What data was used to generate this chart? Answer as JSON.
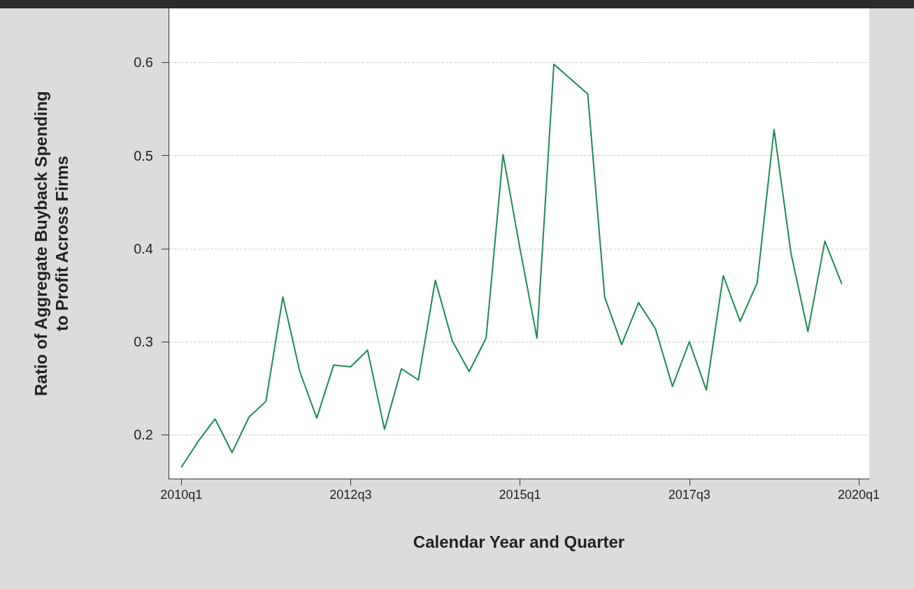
{
  "chart_data": {
    "type": "line",
    "xlabel": "Calendar Year and Quarter",
    "ylabel": "Ratio of Aggregate Buyback Spending\nto Profit Across Firms",
    "categories": [
      "2010q1",
      null,
      null,
      null,
      null,
      null,
      null,
      null,
      null,
      null,
      "2012q3",
      null,
      null,
      null,
      null,
      null,
      null,
      null,
      null,
      null,
      "2015q1",
      null,
      null,
      null,
      null,
      null,
      null,
      null,
      null,
      null,
      "2017q3",
      null,
      null,
      null,
      null,
      null,
      null,
      null,
      null,
      null,
      "2020q1"
    ],
    "series": [
      {
        "color": "#1e8a52",
        "values": [
          0.165,
          0.193,
          0.217,
          0.181,
          0.219,
          0.236,
          0.348,
          0.268,
          0.218,
          0.275,
          0.273,
          0.291,
          0.206,
          0.271,
          0.259,
          0.366,
          0.301,
          0.268,
          0.304,
          0.501,
          0.4,
          0.304,
          0.598,
          0.582,
          0.566,
          0.348,
          0.297,
          0.342,
          0.314,
          0.252,
          0.3,
          0.248,
          0.371,
          0.322,
          0.363,
          0.528,
          0.395,
          0.311,
          0.408,
          0.362,
          null
        ]
      }
    ],
    "ylim": [
      0.153,
      0.658
    ],
    "yticks": [
      0.2,
      0.3,
      0.4,
      0.5,
      0.6
    ],
    "grid": "y",
    "marker": "none",
    "line_style": "solid"
  }
}
